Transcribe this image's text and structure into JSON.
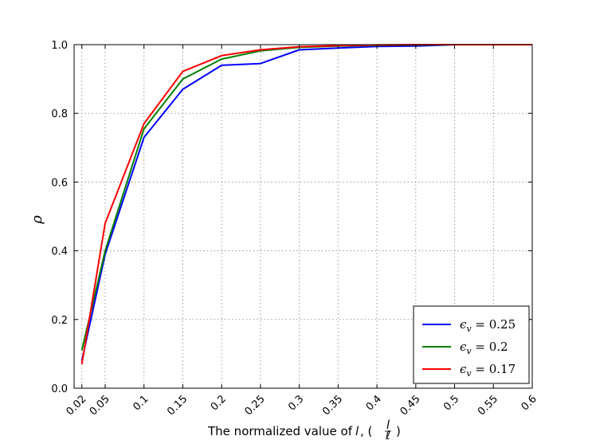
{
  "chart_data": {
    "type": "line",
    "xlabel": "The normalized value of",
    "xlabel_var": "l",
    "xlabel_frac_num": "l",
    "xlabel_frac_den": "ℓ",
    "ylabel": "ρ",
    "ylim": [
      0,
      1.0
    ],
    "yticks": [
      "0.0",
      "0.2",
      "0.4",
      "0.6",
      "0.8",
      "1.0"
    ],
    "xticks": [
      "0.02",
      "0.05",
      "0.1",
      "0.15",
      "0.2",
      "0.25",
      "0.3",
      "0.35",
      "0.4",
      "0.45",
      "0.5",
      "0.55",
      "0.6"
    ],
    "grid": true,
    "legend_position": "bottom-right",
    "series": [
      {
        "name": "ϵv = 0.25",
        "legend_symbol": "ϵ",
        "legend_sub": "v",
        "legend_rest": " = 0.25",
        "color": "#0000ff",
        "x": [
          0.02,
          0.05,
          0.1,
          0.15,
          0.2,
          0.25,
          0.3,
          0.35,
          0.4,
          0.45,
          0.5,
          0.55,
          0.6
        ],
        "values": [
          0.08,
          0.39,
          0.73,
          0.87,
          0.94,
          0.945,
          0.985,
          0.99,
          0.995,
          0.996,
          1.0,
          1.0,
          1.0
        ]
      },
      {
        "name": "ϵv = 0.2",
        "legend_symbol": "ϵ",
        "legend_sub": "v",
        "legend_rest": " = 0.2",
        "color": "#008000",
        "x": [
          0.02,
          0.05,
          0.1,
          0.15,
          0.2,
          0.25,
          0.3,
          0.35,
          0.4,
          0.45,
          0.5,
          0.55,
          0.6
        ],
        "values": [
          0.11,
          0.4,
          0.755,
          0.9,
          0.958,
          0.982,
          0.992,
          0.996,
          0.998,
          0.999,
          1.0,
          1.0,
          1.0
        ]
      },
      {
        "name": "ϵv = 0.17",
        "legend_symbol": "ϵ",
        "legend_sub": "v",
        "legend_rest": " = 0.17",
        "color": "#ff0000",
        "x": [
          0.02,
          0.05,
          0.1,
          0.15,
          0.2,
          0.25,
          0.3,
          0.35,
          0.4,
          0.45,
          0.5,
          0.55,
          0.6
        ],
        "values": [
          0.07,
          0.48,
          0.77,
          0.922,
          0.968,
          0.985,
          0.994,
          0.997,
          0.999,
          1.0,
          1.0,
          1.0,
          1.0
        ]
      }
    ]
  }
}
